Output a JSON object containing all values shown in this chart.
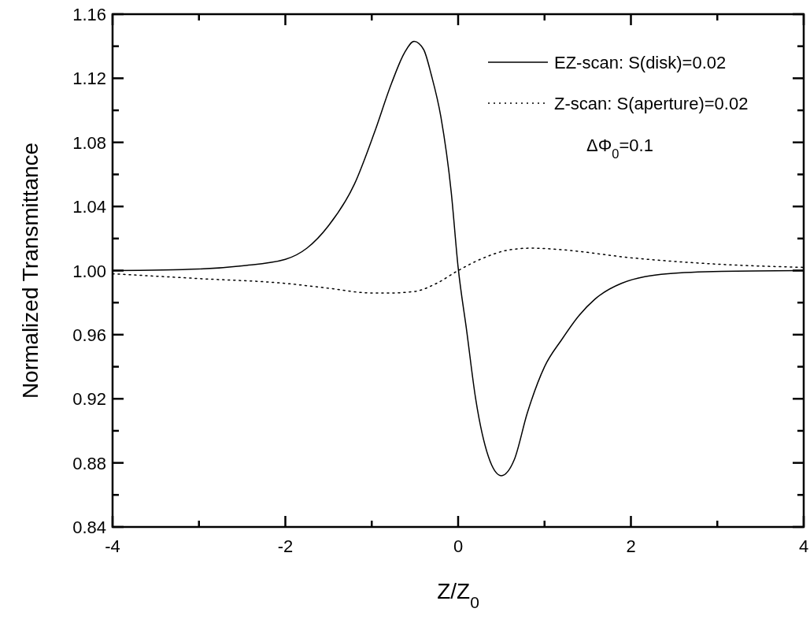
{
  "chart_data": {
    "type": "line",
    "xlabel": "Z/Z$_{0}$",
    "ylabel": "Normalized Transmittance",
    "xlim": [
      -4,
      4
    ],
    "ylim": [
      0.84,
      1.16
    ],
    "xticks": [
      -4,
      {
        "value": -3,
        "label": null
      },
      -2,
      {
        "value": -1,
        "label": null
      },
      0,
      {
        "value": 1,
        "label": null
      },
      2,
      {
        "value": 3,
        "label": null
      },
      4
    ],
    "yticks": [
      0.84,
      {
        "value": 0.86,
        "label": null
      },
      0.88,
      {
        "value": 0.9,
        "label": null
      },
      0.92,
      {
        "value": 0.94,
        "label": null
      },
      0.96,
      {
        "value": 0.98,
        "label": null
      },
      {
        "value": 1,
        "label": "1.00"
      },
      {
        "value": 1.02,
        "label": null
      },
      1.04,
      {
        "value": 1.06,
        "label": null
      },
      1.08,
      {
        "value": 1.1,
        "label": null
      },
      1.12,
      {
        "value": 1.14,
        "label": null
      },
      1.16
    ],
    "grid": false,
    "legend": "top right",
    "marker": "none",
    "annotations": [
      "ΔΦ$_{0}$=0.1"
    ],
    "series": [
      {
        "name": "EZ-scan: S(disk)=0.02",
        "color": "#000000",
        "line_style": "solid",
        "x": [
          -4,
          -3,
          -2.5,
          -2,
          -1.75,
          -1.5,
          -1.2,
          -0.97,
          -0.77,
          -0.62,
          -0.51,
          -0.4,
          -0.31,
          -0.2,
          -0.08,
          0,
          0.1,
          0.2,
          0.35,
          0.5,
          0.65,
          0.8,
          1.0,
          1.2,
          1.4,
          1.58,
          1.89,
          2.43,
          3.05,
          4
        ],
        "values": [
          1.0,
          1.001,
          1.003,
          1.007,
          1.014,
          1.028,
          1.054,
          1.086,
          1.117,
          1.136,
          1.143,
          1.138,
          1.122,
          1.096,
          1.049,
          1.002,
          0.962,
          0.921,
          0.884,
          0.872,
          0.882,
          0.911,
          0.94,
          0.957,
          0.972,
          0.982,
          0.992,
          0.998,
          0.9995,
          1.0
        ]
      },
      {
        "name": "Z-scan: S(aperture)=0.02",
        "color": "#000000",
        "line_style": "dotted",
        "x": [
          -4,
          -3,
          -2,
          -1.5,
          -1,
          -0.8,
          -0.5,
          -0.25,
          0,
          0.3,
          0.6,
          0.85,
          1.2,
          2,
          3,
          4
        ],
        "values": [
          0.998,
          0.995,
          0.992,
          0.989,
          0.986,
          0.986,
          0.987,
          0.992,
          1.0,
          1.008,
          1.013,
          1.014,
          1.013,
          1.008,
          1.004,
          1.002
        ]
      }
    ]
  }
}
